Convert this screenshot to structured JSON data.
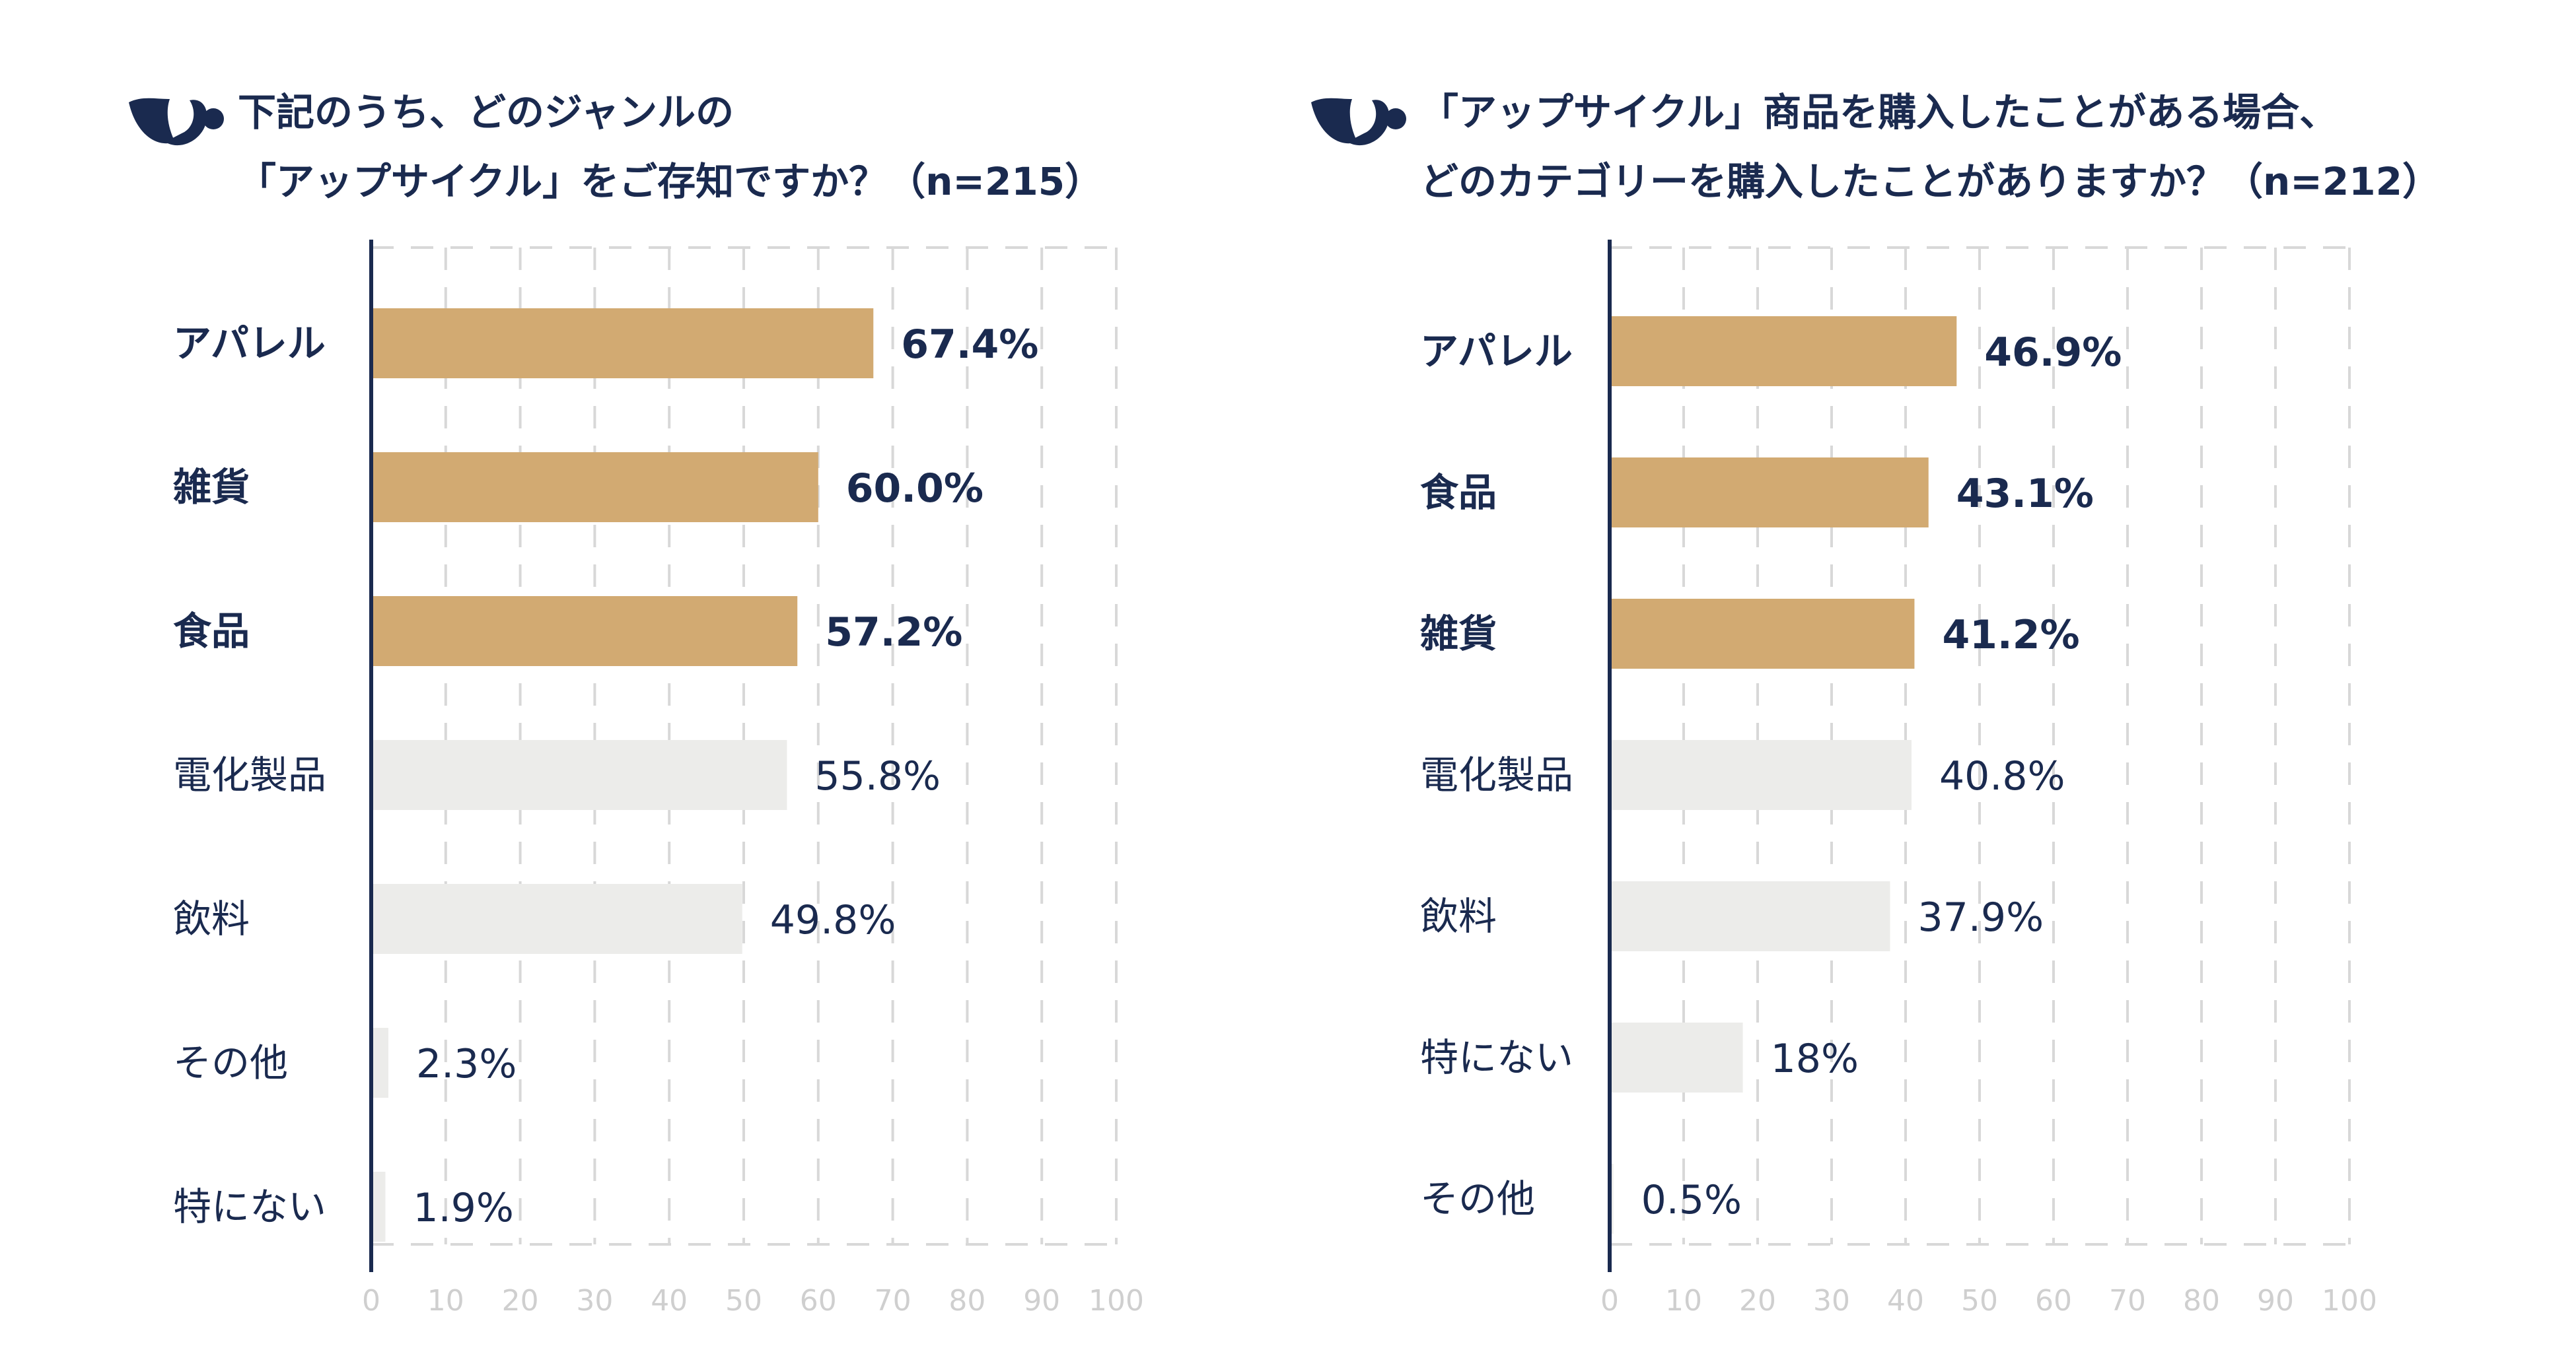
{
  "colors": {
    "highlight": "#d2aa72",
    "normal": "#ececea",
    "text": "#1a2a4f",
    "grid": "#d8d8d8",
    "axis": "#1a2a4f",
    "tick": "#cfcfcf"
  },
  "logo": {
    "icon": "brand-logo-icon"
  },
  "chart_data": [
    {
      "type": "bar",
      "orientation": "horizontal",
      "title": [
        "下記のうち、どのジャンルの",
        "「アップサイクル」をご存知ですか？（n=215）"
      ],
      "categories": [
        "アパレル",
        "雑貨",
        "食品",
        "電化製品",
        "飲料",
        "その他",
        "特にない"
      ],
      "values": [
        67.4,
        60.0,
        57.2,
        55.8,
        49.8,
        2.3,
        1.9
      ],
      "labels": [
        "67.4%",
        "60.0%",
        "57.2%",
        "55.8%",
        "49.8%",
        "2.3%",
        "1.9%"
      ],
      "highlight_top": 3,
      "xlim": [
        0,
        100
      ],
      "ticks": [
        "0",
        "10",
        "20",
        "30",
        "40",
        "50",
        "60",
        "70",
        "80",
        "90",
        "100"
      ],
      "grid": true
    },
    {
      "type": "bar",
      "orientation": "horizontal",
      "title": [
        "「アップサイクル」商品を購入したことがある場合、",
        "どのカテゴリーを購入したことがありますか？（n=212）"
      ],
      "categories": [
        "アパレル",
        "食品",
        "雑貨",
        "電化製品",
        "飲料",
        "特にない",
        "その他"
      ],
      "values": [
        46.9,
        43.1,
        41.2,
        40.8,
        37.9,
        18,
        0.5
      ],
      "labels": [
        "46.9%",
        "43.1%",
        "41.2%",
        "40.8%",
        "37.9%",
        "18%",
        "0.5%"
      ],
      "highlight_top": 3,
      "xlim": [
        0,
        100
      ],
      "ticks": [
        "0",
        "10",
        "20",
        "30",
        "40",
        "50",
        "60",
        "70",
        "80",
        "90",
        "100"
      ],
      "grid": true
    }
  ]
}
